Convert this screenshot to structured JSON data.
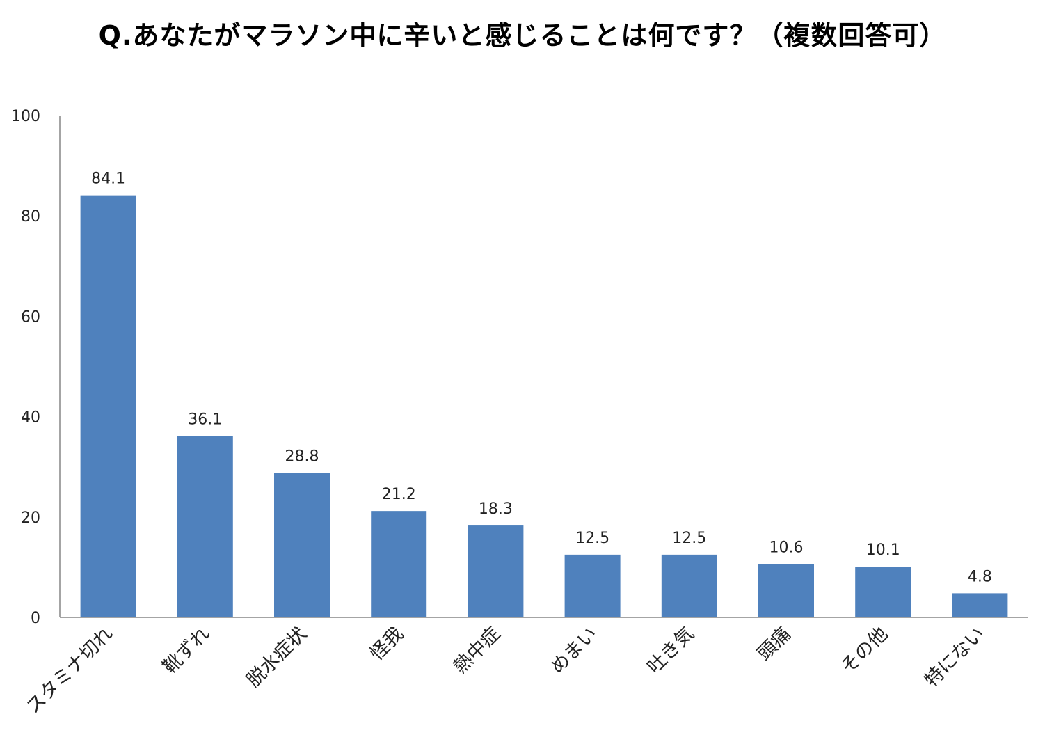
{
  "chart_data": {
    "type": "bar",
    "title": "Q.あなたがマラソン中に辛いと感じることは何です？（複数回答可）",
    "xlabel": "",
    "ylabel": "",
    "ylim": [
      0,
      100
    ],
    "yticks": [
      "0",
      "20",
      "40",
      "60",
      "80",
      "100"
    ],
    "grid": false,
    "legend": "none",
    "bar_color": "#4f81bd",
    "categories": [
      "スタミナ切れ",
      "靴ずれ",
      "脱水症状",
      "怪我",
      "熱中症",
      "めまい",
      "吐き気",
      "頭痛",
      "その他",
      "特にない"
    ],
    "values": [
      84.1,
      36.1,
      28.8,
      21.2,
      18.3,
      12.5,
      12.5,
      10.6,
      10.1,
      4.8
    ],
    "value_labels": [
      "84.1",
      "36.1",
      "28.8",
      "21.2",
      "18.3",
      "12.5",
      "12.5",
      "10.6",
      "10.1",
      "4.8"
    ]
  }
}
